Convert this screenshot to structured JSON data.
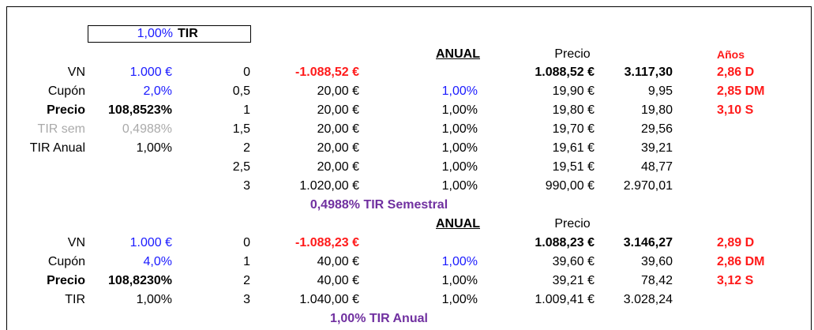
{
  "tir_box": {
    "value": "1,00%",
    "label": "TIR"
  },
  "block1": {
    "anual": "ANUAL",
    "precio_header": "Precio",
    "anos_header": "Años",
    "labels": [
      "VN",
      "Cupón",
      "Precio",
      "TIR sem",
      "TIR Anual"
    ],
    "values": [
      "1.000 €",
      "2,0%",
      "108,8523%",
      "0,4988%",
      "1,00%"
    ],
    "periods": [
      "0",
      "0,5",
      "1",
      "1,5",
      "2",
      "2,5",
      "3"
    ],
    "flows": [
      "-1.088,52 €",
      "20,00 €",
      "20,00 €",
      "20,00 €",
      "20,00 €",
      "20,00 €",
      "1.020,00 €"
    ],
    "rates": [
      "",
      "1,00%",
      "1,00%",
      "1,00%",
      "1,00%",
      "1,00%",
      "1,00%"
    ],
    "pv": [
      "1.088,52 €",
      "19,90 €",
      "19,80 €",
      "19,70 €",
      "19,61 €",
      "19,51 €",
      "990,00 €"
    ],
    "weighted": [
      "3.117,30",
      "9,95",
      "19,80",
      "29,56",
      "39,21",
      "48,77",
      "2.970,01"
    ],
    "years": [
      "2,86 D",
      "2,85 DM",
      "3,10 S"
    ],
    "footer": "0,4988%  TIR Semestral"
  },
  "block2": {
    "anual": "ANUAL",
    "precio_header": "Precio",
    "labels": [
      "VN",
      "Cupón",
      "Precio",
      "TIR"
    ],
    "values": [
      "1.000 €",
      "4,0%",
      "108,8230%",
      "1,00%"
    ],
    "periods": [
      "0",
      "1",
      "2",
      "3"
    ],
    "flows": [
      "-1.088,23 €",
      "40,00 €",
      "40,00 €",
      "1.040,00 €"
    ],
    "rates": [
      "",
      "1,00%",
      "1,00%",
      "1,00%"
    ],
    "pv": [
      "1.088,23 €",
      "39,60 €",
      "39,21 €",
      "1.009,41 €"
    ],
    "weighted": [
      "3.146,27",
      "39,60",
      "78,42",
      "3.028,24"
    ],
    "years": [
      "2,89 D",
      "2,86 DM",
      "3,12 S"
    ],
    "footer": "1,00%  TIR Anual"
  }
}
